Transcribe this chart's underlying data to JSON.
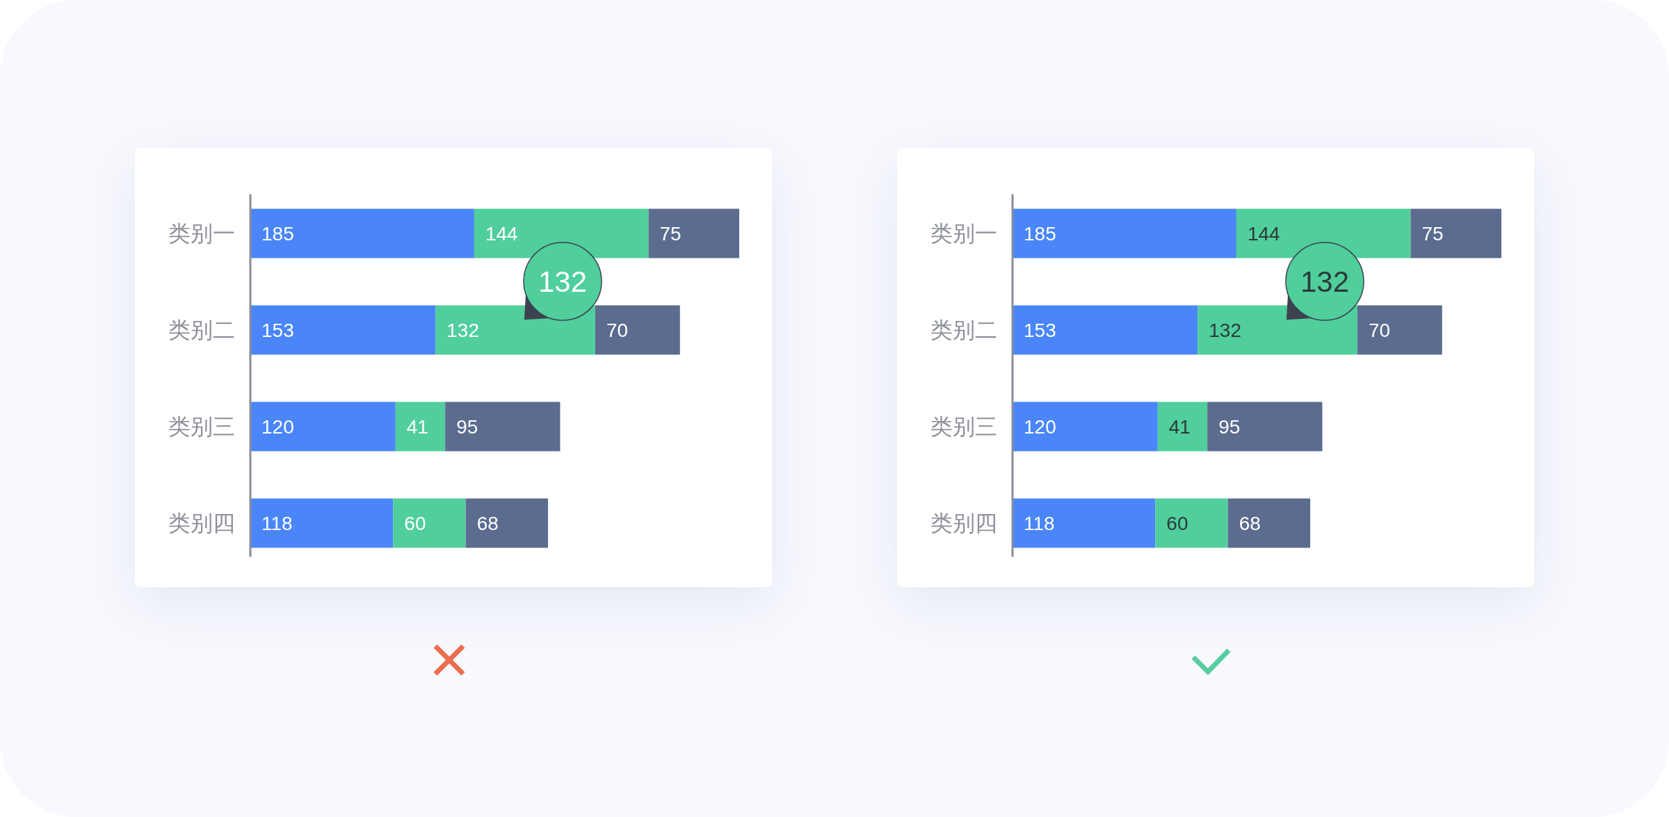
{
  "chart_data": [
    {
      "type": "bar",
      "orientation": "horizontal",
      "stacked": true,
      "categories": [
        "类别一",
        "类别二",
        "类别三",
        "类别四"
      ],
      "series": [
        {
          "color": "#4a86f8",
          "values": [
            185,
            153,
            120,
            118
          ]
        },
        {
          "color": "#50ce9c",
          "values": [
            144,
            132,
            41,
            60
          ]
        },
        {
          "color": "#5b6c8f",
          "values": [
            75,
            70,
            95,
            68
          ]
        }
      ],
      "data_labels": true,
      "annotations": [
        "132"
      ]
    },
    {
      "type": "bar",
      "orientation": "horizontal",
      "stacked": true,
      "categories": [
        "类别一",
        "类别二",
        "类别三",
        "类别四"
      ],
      "series": [
        {
          "color": "#4a86f8",
          "values": [
            185,
            153,
            120,
            118
          ]
        },
        {
          "color": "#50ce9c",
          "values": [
            144,
            132,
            41,
            60
          ]
        },
        {
          "color": "#5b6c8f",
          "values": [
            75,
            70,
            95,
            68
          ]
        }
      ],
      "data_labels": true,
      "annotations": [
        "132"
      ]
    }
  ]
}
